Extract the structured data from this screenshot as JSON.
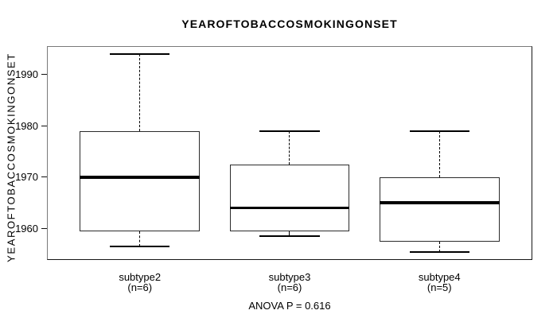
{
  "chart_data": {
    "type": "boxplot",
    "title": "YEAROFTOBACCOSMOKINGONSET",
    "ylabel": "YEAROFTOBACCOSMOKINGONSET",
    "xlabel": "",
    "annotation": "ANOVA P = 0.616",
    "yticks": [
      1960,
      1970,
      1980,
      1990
    ],
    "ylim": [
      1953.9,
      1995.5
    ],
    "xlim": [
      0.38,
      3.62
    ],
    "grid": false,
    "legend": null,
    "box_width_units": 0.8,
    "cap_width_units": 0.4,
    "groups": [
      {
        "label": "subtype2",
        "sublabel": "(n=6)",
        "n": 6,
        "position": 1,
        "whisker_low": 1956.5,
        "q1": 1959.5,
        "median": 1970,
        "q3": 1979,
        "whisker_high": 1994
      },
      {
        "label": "subtype3",
        "sublabel": "(n=6)",
        "n": 6,
        "position": 2,
        "whisker_low": 1958.5,
        "q1": 1959.5,
        "median": 1964,
        "q3": 1972.5,
        "whisker_high": 1979
      },
      {
        "label": "subtype4",
        "sublabel": "(n=5)",
        "n": 5,
        "position": 3,
        "whisker_low": 1955.5,
        "q1": 1957.5,
        "median": 1965,
        "q3": 1970,
        "whisker_high": 1979
      }
    ],
    "colors": {
      "background": "#ffffff",
      "text": "#000000",
      "box_border": "#2b2b2b",
      "median": "#000000",
      "whisker": "#000000",
      "frame_light": "#7a7a7a",
      "frame_dark": "#161616"
    }
  }
}
